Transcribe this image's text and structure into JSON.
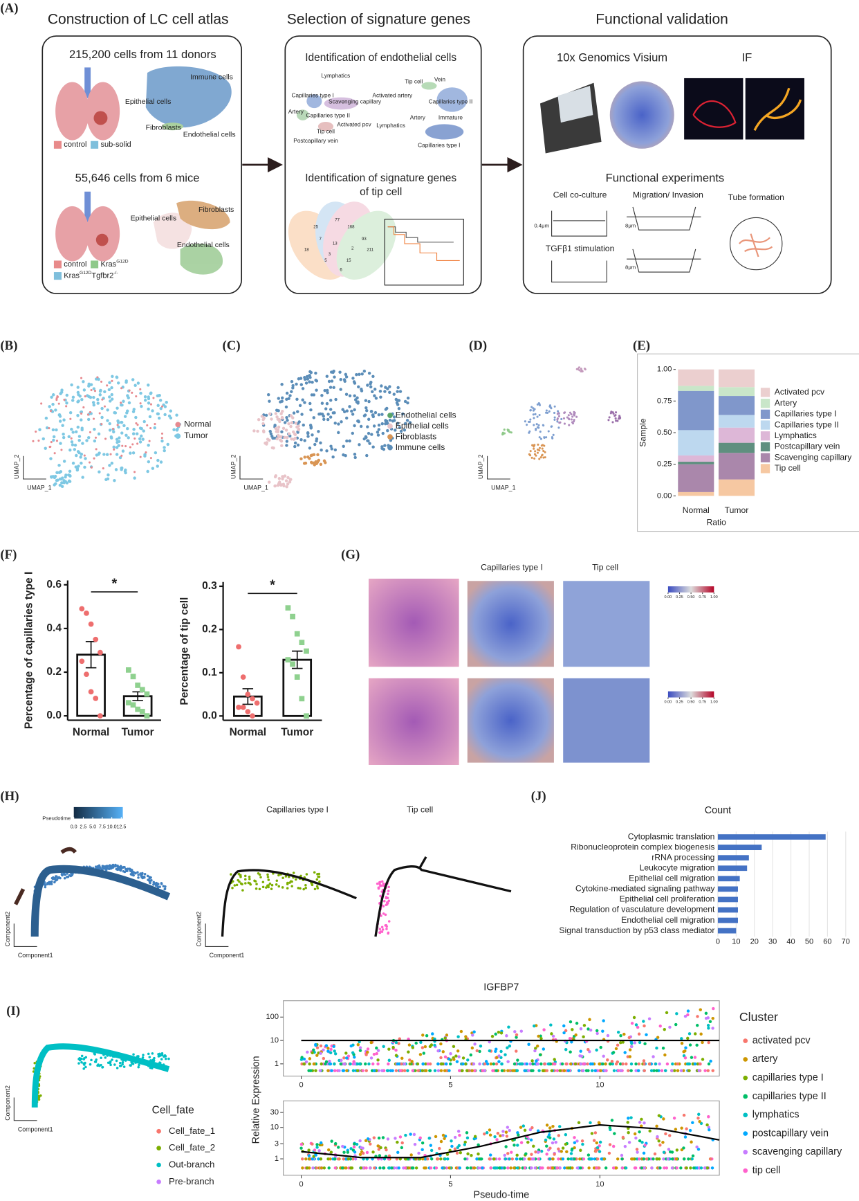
{
  "panel_labels": [
    "(A)",
    "(B)",
    "(C)",
    "(D)",
    "(E)",
    "(F)",
    "(G)",
    "(H)",
    "(I)",
    "(J)"
  ],
  "panel_a": {
    "atlas": {
      "title": "Construction of LC cell atlas",
      "human": {
        "caption": "215,200 cells from 11 donors",
        "labels": [
          "Immune cells",
          "Epithelial cells",
          "Fibroblasts",
          "Endothelial cells"
        ],
        "legend": [
          {
            "name": "control",
            "color": "#e88a8a"
          },
          {
            "name": "sub-solid",
            "color": "#7fbfdc"
          }
        ]
      },
      "mouse": {
        "caption": "55,646 cells from 6 mice",
        "labels": [
          "Fibroblasts",
          "Epithelial cells",
          "Endothelial cells"
        ],
        "legend": [
          {
            "base": "control",
            "color": "#e88a8a"
          },
          {
            "base": "Kras",
            "sup": "G12D",
            "color": "#8fc98a"
          },
          {
            "base": "Kras",
            "sup": "G12D",
            "base2": "Tgfbr2",
            "sup2": "-/-",
            "color": "#7fbfdc"
          }
        ]
      }
    },
    "signature": {
      "title": "Selection of signature genes",
      "endothelial": {
        "caption": "Identification of endothelial cells",
        "labels": [
          "Lymphatics",
          "Tip cell",
          "Vein",
          "Capillaries type I",
          "Activated artery",
          "Scavenging capillary",
          "Capillaries type II",
          "Artery",
          "Capillaries type II",
          "Activated pcv",
          "Lymphatics",
          "Artery",
          "Immature",
          "Tip cell",
          "Postcapillary vein",
          "Capillaries type I"
        ]
      },
      "tip": {
        "caption": [
          "Identification of signature genes",
          "of tip cell"
        ],
        "venn": [
          "77",
          "168",
          "25",
          "7",
          "13",
          "93",
          "2",
          "18",
          "211",
          "5",
          "15",
          "6",
          "3"
        ]
      }
    },
    "validation": {
      "title": "Functional validation",
      "visium": "10x Genomics Visium",
      "if": "IF",
      "experiments": {
        "title": "Functional experiments",
        "items": [
          "Cell co-culture",
          "Migration/ Invasion",
          "Tube formation",
          "TGFβ1 stimulation"
        ],
        "pores": [
          "0.4μm",
          "8μm",
          "8μm"
        ]
      }
    }
  },
  "umap": {
    "axis_x": "UMAP_1",
    "axis_y": "UMAP_2",
    "b_legend": [
      {
        "name": "Normal",
        "color": "#e78a8f"
      },
      {
        "name": "Tumor",
        "color": "#7ec8e3"
      }
    ],
    "c_legend": [
      {
        "name": "Endothelial cells",
        "color": "#5aa469"
      },
      {
        "name": "Epithelial cells",
        "color": "#e8c3c8"
      },
      {
        "name": "Fibroblasts",
        "color": "#d99554"
      },
      {
        "name": "Immune cells",
        "color": "#5b8db8"
      }
    ]
  },
  "spatial": {
    "titles": [
      "Capillaries type I",
      "Tip cell"
    ],
    "colorbar": [
      {
        "value": 0,
        "label": "0.00"
      },
      0.25,
      {
        "value": 0.5,
        "label": "0.50"
      },
      0.75,
      {
        "value": 1,
        "label": "1.00"
      }
    ]
  },
  "trajectory": {
    "pseudotime_title": "Pseudotime",
    "colorbar": [
      {
        "value": 0,
        "label": "0.0"
      },
      2.5,
      {
        "value": 5,
        "label": "5.0"
      },
      7.5,
      {
        "value": 10,
        "label": "10.0"
      },
      12.5
    ],
    "titles": [
      "Capillaries type I",
      "Tip cell"
    ],
    "axis_x": "Component1",
    "axis_y": "Component2",
    "cell_fate": {
      "title": "Cell_fate",
      "items": [
        {
          "name": "Cell_fate_1",
          "color": "#f8766d"
        },
        {
          "name": "Cell_fate_2",
          "color": "#7cae00"
        },
        {
          "name": "Out-branch",
          "color": "#00bfc4"
        },
        {
          "name": "Pre-branch",
          "color": "#c77cff"
        }
      ]
    },
    "cluster": {
      "title": "Cluster",
      "items": [
        {
          "name": "activated pcv",
          "color": "#f8766d"
        },
        {
          "name": "artery",
          "color": "#cd9600"
        },
        {
          "name": "capillaries type I",
          "color": "#7cae00"
        },
        {
          "name": "capillaries type II",
          "color": "#00be67"
        },
        {
          "name": "lymphatics",
          "color": "#00bfc4"
        },
        {
          "name": "postcapillary vein",
          "color": "#00a9ff"
        },
        {
          "name": "scavenging capillary",
          "color": "#c77cff"
        },
        {
          "name": "tip cell",
          "color": "#ff61cc"
        }
      ]
    }
  },
  "chart_data": [
    {
      "type": "stacked_bar",
      "xlabel": "Ratio",
      "ylabel": "Sample",
      "categories": [
        "Normal",
        "Tumor"
      ],
      "ylim": [
        -0.05,
        1.05
      ],
      "yticks": [
        {
          "value": 0,
          "label": "0.00"
        },
        0.25,
        {
          "value": 0.5,
          "label": "0.50"
        },
        0.75,
        {
          "value": 1,
          "label": "1.00"
        }
      ],
      "series": [
        {
          "name": "Activated pcv",
          "color": "#ebcfcf",
          "values": [
            0.13,
            0.14
          ]
        },
        {
          "name": "Artery",
          "color": "#c9e6c9",
          "values": [
            0.04,
            0.07
          ]
        },
        {
          "name": "Capillaries type I",
          "color": "#8097cb",
          "values": [
            0.31,
            0.15
          ]
        },
        {
          "name": "Capillaries type II",
          "color": "#bdd8ef",
          "values": [
            0.2,
            0.1
          ]
        },
        {
          "name": "Lymphatics",
          "color": "#ddb7d7",
          "values": [
            0.05,
            0.12
          ]
        },
        {
          "name": "Postcapillary vein",
          "color": "#5f8f7f",
          "values": [
            0.02,
            0.08
          ]
        },
        {
          "name": "Scavenging capillary",
          "color": "#aa87ab",
          "values": [
            0.22,
            0.21
          ]
        },
        {
          "name": "Tip cell",
          "color": "#f6c8a2",
          "values": [
            0.03,
            0.13
          ]
        }
      ]
    },
    {
      "type": "bar_points",
      "ylabel": "Percentage of capillaries type I",
      "categories": [
        "Normal",
        "Tumor"
      ],
      "values": [
        0.28,
        0.09
      ],
      "errors": [
        0.06,
        0.02
      ],
      "points": [
        [
          0.49,
          0.47,
          0.42,
          0.35,
          0.29,
          0.25,
          0.19,
          0.11,
          0.08,
          0.0
        ],
        [
          0.21,
          0.18,
          0.14,
          0.12,
          0.1,
          0.06,
          0.05,
          0.03,
          0.02,
          0.0
        ]
      ],
      "point_colors": [
        "#ee6e6e",
        "#8fd18f"
      ],
      "annotations": [
        "*"
      ],
      "ylim": [
        -0.02,
        0.62
      ],
      "yticks": [
        {
          "value": 0,
          "label": "0.0"
        },
        0.2,
        0.4,
        0.6
      ]
    },
    {
      "type": "bar_points",
      "ylabel": "Percentage of tip cell",
      "categories": [
        "Normal",
        "Tumor"
      ],
      "values": [
        0.045,
        0.13
      ],
      "errors": [
        0.018,
        0.02
      ],
      "points": [
        [
          0.16,
          0.09,
          0.05,
          0.04,
          0.03,
          0.02,
          0.02,
          0.01,
          0.0
        ],
        [
          0.25,
          0.23,
          0.19,
          0.17,
          0.15,
          0.13,
          0.12,
          0.09,
          0.04,
          0.0
        ]
      ],
      "point_colors": [
        "#ee6e6e",
        "#8fd18f"
      ],
      "annotations": [
        "*"
      ],
      "ylim": [
        -0.01,
        0.31
      ],
      "yticks": [
        {
          "value": 0,
          "label": "0.0"
        },
        0.1,
        0.2,
        0.3
      ]
    },
    {
      "type": "barh",
      "title": "Count",
      "color": "#4472c4",
      "grid": true,
      "categories": [
        "Cytoplasmic translation",
        "Ribonucleoprotein complex biogenesis",
        "rRNA processing",
        "Leukocyte migration",
        "Epithelial cell migration",
        "Cytokine-mediated signaling pathway",
        "Epithelial cell proliferation",
        "Regulation of vasculature development",
        "Endothelial cell migration",
        "Signal transduction by p53 class mediator"
      ],
      "values": [
        59,
        24,
        17,
        16,
        12,
        11,
        11,
        11,
        11,
        10
      ],
      "xlim": [
        -1.7,
        72.5
      ],
      "xticks": [
        0,
        10,
        20,
        30,
        40,
        50,
        60,
        70
      ]
    },
    {
      "type": "line",
      "title": "IGFBP7",
      "ylog": true,
      "x": [
        0,
        14
      ],
      "series": [
        {
          "color": "#000000",
          "values": [
            10,
            10
          ]
        }
      ],
      "xlim": [
        -0.6,
        14
      ],
      "xticks": [
        0,
        5,
        10
      ],
      "ylim": [
        0.3,
        500
      ],
      "yticks": [
        1,
        10,
        100
      ]
    },
    {
      "type": "line",
      "xlabel": "Pseudo-time",
      "ylabel": "Relative Expression",
      "ylog": true,
      "x": [
        0,
        2,
        4,
        6,
        8,
        10,
        12,
        14
      ],
      "series": [
        {
          "color": "#000000",
          "values": [
            1.7,
            1.1,
            1.1,
            2.5,
            7,
            12,
            9,
            4
          ]
        }
      ],
      "xlim": [
        -0.6,
        14
      ],
      "xticks": [
        0,
        5,
        10
      ],
      "ylim": [
        0.3,
        70
      ],
      "yticks": [
        1,
        3,
        10,
        30
      ]
    }
  ]
}
